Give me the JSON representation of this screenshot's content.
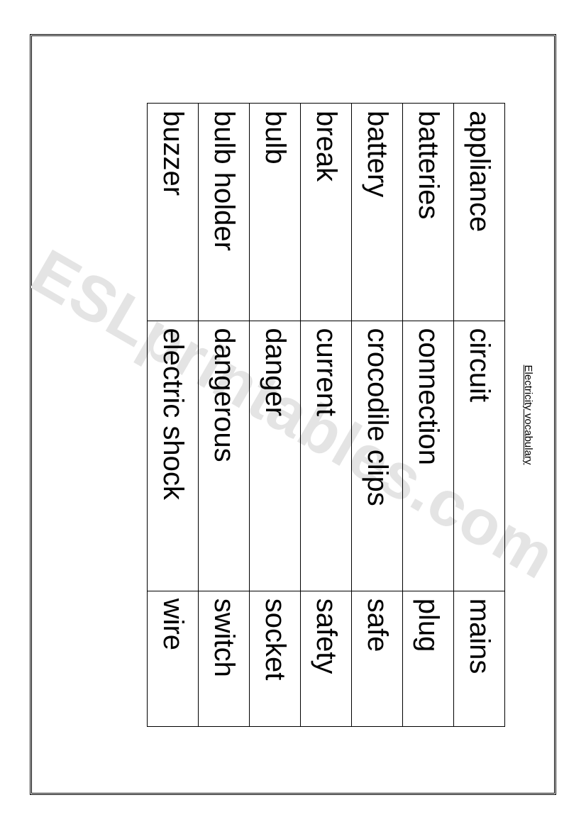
{
  "title": "Electricity vocabulary",
  "watermark": "ESLprintables.com",
  "table": {
    "columns": 3,
    "rows": [
      [
        "appliance",
        "circuit",
        "mains"
      ],
      [
        "batteries",
        "connection",
        "plug"
      ],
      [
        "battery",
        "crocodile clips",
        "safe"
      ],
      [
        "break",
        "current",
        "safety"
      ],
      [
        "bulb",
        "danger",
        "socket"
      ],
      [
        "bulb holder",
        "dangerous",
        "switch"
      ],
      [
        "buzzer",
        "electric shock",
        "wire"
      ]
    ],
    "font_family": "Comic Sans MS",
    "cell_font_size": 40,
    "title_font_size": 15,
    "border_color": "#000000",
    "text_color": "#000000",
    "background_color": "#ffffff",
    "watermark_color": "#e4e4e4"
  }
}
